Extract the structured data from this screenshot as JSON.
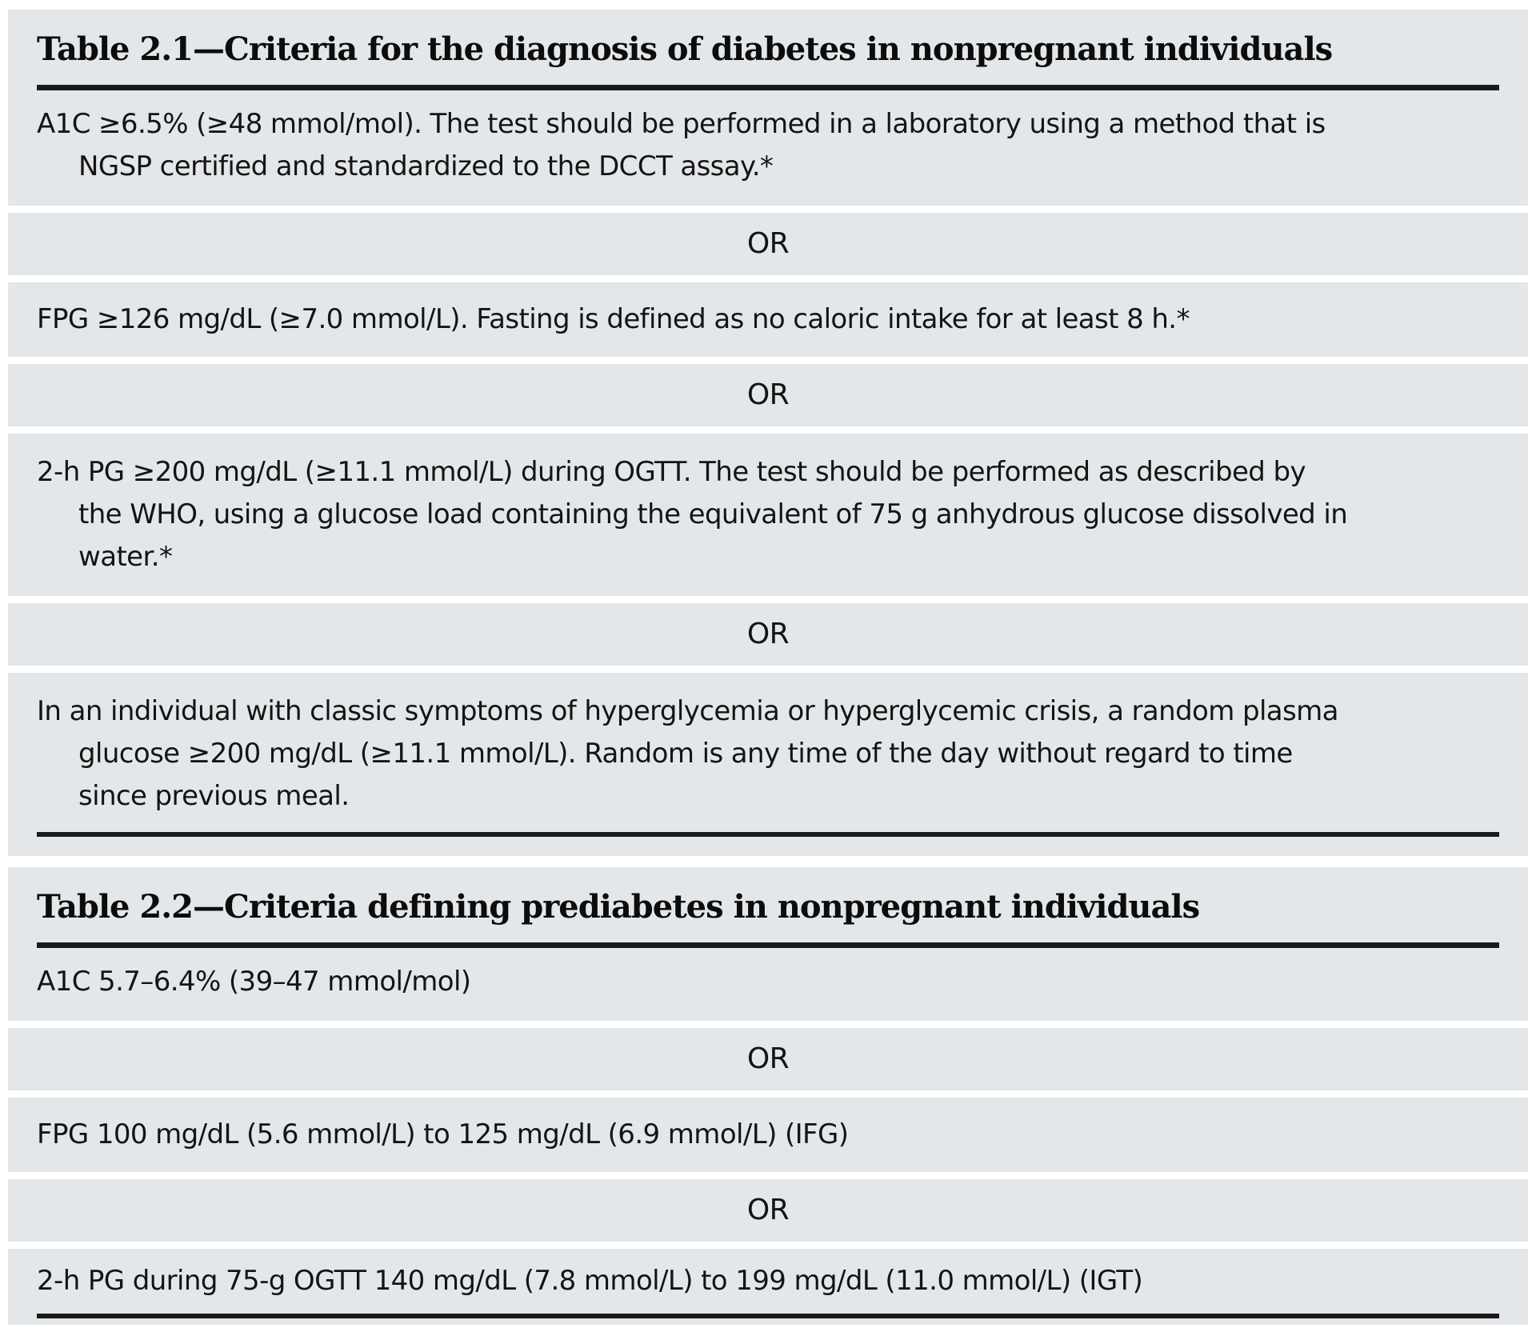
{
  "colors": {
    "band_background": "#e4e7e9",
    "rule": "#1a1a1a",
    "text": "#141414",
    "page_background": "#ffffff"
  },
  "tables": [
    {
      "title": "Table 2.1—Criteria for the diagnosis of diabetes in nonpregnant individuals",
      "rows": [
        {
          "type": "criterion",
          "text": "A1C ≥6.5% (≥48 mmol/mol). The test should be performed in a laboratory using a method that is NGSP certified and standardized to the DCCT assay.*"
        },
        {
          "type": "separator",
          "text": "OR"
        },
        {
          "type": "criterion",
          "text": "FPG ≥126 mg/dL (≥7.0 mmol/L). Fasting is defined as no caloric intake for at least 8 h.*"
        },
        {
          "type": "separator",
          "text": "OR"
        },
        {
          "type": "criterion",
          "text": "2-h PG ≥200 mg/dL (≥11.1 mmol/L) during OGTT. The test should be performed as described by the WHO, using a glucose load containing the equivalent of 75 g anhydrous glucose dissolved in water.*"
        },
        {
          "type": "separator",
          "text": "OR"
        },
        {
          "type": "criterion",
          "text": "In an individual with classic symptoms of hyperglycemia or hyperglycemic crisis, a random plasma glucose ≥200 mg/dL (≥11.1 mmol/L). Random is any time of the day without regard to time since previous meal."
        }
      ]
    },
    {
      "title": "Table 2.2—Criteria defining prediabetes in nonpregnant individuals",
      "rows": [
        {
          "type": "criterion",
          "text": "A1C 5.7–6.4% (39–47 mmol/mol)"
        },
        {
          "type": "separator",
          "text": "OR"
        },
        {
          "type": "criterion",
          "text": "FPG 100 mg/dL (5.6 mmol/L) to 125 mg/dL (6.9 mmol/L) (IFG)"
        },
        {
          "type": "separator",
          "text": "OR"
        },
        {
          "type": "criterion",
          "text": "2-h PG during 75-g OGTT 140 mg/dL (7.8 mmol/L) to 199 mg/dL (11.0 mmol/L) (IGT)"
        }
      ]
    }
  ]
}
